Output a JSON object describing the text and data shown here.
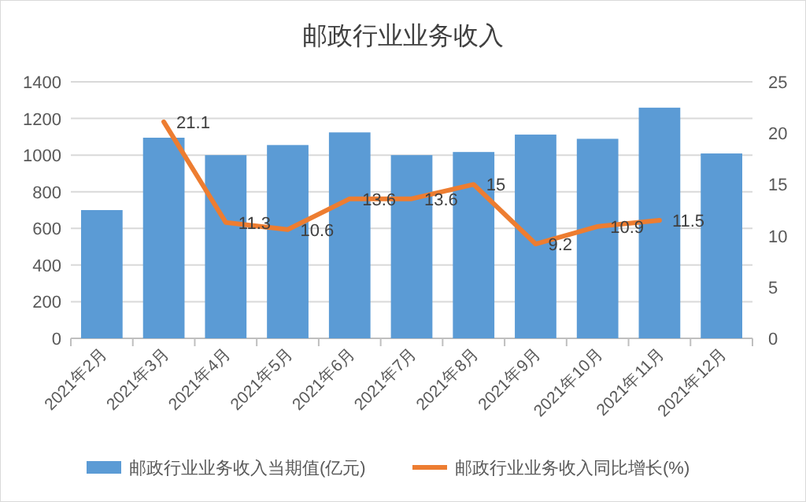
{
  "chart_data": {
    "type": "bar",
    "title": "邮政行业业务收入",
    "categories": [
      "2021年2月",
      "2021年3月",
      "2021年4月",
      "2021年5月",
      "2021年6月",
      "2021年7月",
      "2021年8月",
      "2021年9月",
      "2021年10月",
      "2021年11月",
      "2021年12月"
    ],
    "series": [
      {
        "name": "邮政行业业务收入当期值(亿元)",
        "color": "#5b9bd5",
        "values": [
          700,
          1095,
          1000,
          1055,
          1124,
          1000,
          1017,
          1112,
          1089,
          1259,
          1009
        ]
      },
      {
        "name": "邮政行业业务收入同比增长(%)",
        "type": "line",
        "axis": "y2",
        "color": "#ed7d31",
        "values": [
          null,
          21.1,
          11.3,
          10.6,
          13.6,
          13.6,
          15,
          9.2,
          10.9,
          11.5,
          null
        ],
        "value_labels": [
          null,
          "21.1",
          "11.3",
          "10.6",
          "13.6",
          "13.6",
          "15",
          "9.2",
          "10.9",
          "11.5",
          null
        ]
      }
    ],
    "ylim": [
      0,
      1400
    ],
    "yticks": [
      0,
      200,
      400,
      600,
      800,
      1000,
      1200,
      1400
    ],
    "y2lim": [
      0,
      25
    ],
    "y2ticks": [
      0,
      5,
      10,
      15,
      20,
      25
    ],
    "grid": "y",
    "legend": "bottom",
    "marker": "none",
    "line_style": "solid"
  }
}
